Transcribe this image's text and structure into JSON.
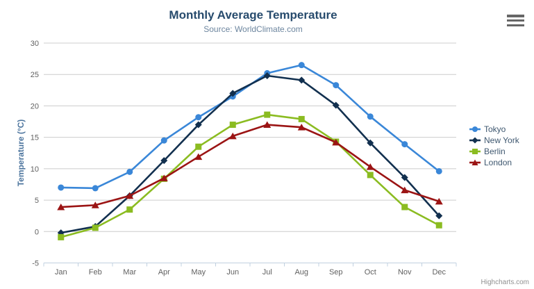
{
  "chart_data": {
    "type": "line",
    "title": "Monthly Average Temperature",
    "subtitle": "Source: WorldClimate.com",
    "xlabel": "",
    "ylabel": "Temperature (°C)",
    "categories": [
      "Jan",
      "Feb",
      "Mar",
      "Apr",
      "May",
      "Jun",
      "Jul",
      "Aug",
      "Sep",
      "Oct",
      "Nov",
      "Dec"
    ],
    "yticks": [
      -5,
      0,
      5,
      10,
      15,
      20,
      25,
      30
    ],
    "ylim": [
      -5,
      30
    ],
    "grid": true,
    "legend_position": "right",
    "series": [
      {
        "name": "Tokyo",
        "color": "#3a87d8",
        "marker": "circle",
        "values": [
          7.0,
          6.9,
          9.5,
          14.5,
          18.2,
          21.5,
          25.2,
          26.5,
          23.3,
          18.3,
          13.9,
          9.6
        ]
      },
      {
        "name": "New York",
        "color": "#12304f",
        "marker": "diamond",
        "values": [
          -0.2,
          0.8,
          5.7,
          11.3,
          17.0,
          22.0,
          24.8,
          24.1,
          20.1,
          14.1,
          8.6,
          2.5
        ]
      },
      {
        "name": "Berlin",
        "color": "#8bbc21",
        "marker": "square",
        "values": [
          -0.9,
          0.6,
          3.5,
          8.4,
          13.5,
          17.0,
          18.6,
          17.9,
          14.3,
          9.0,
          3.9,
          1.0
        ]
      },
      {
        "name": "London",
        "color": "#9b1414",
        "marker": "triangle",
        "values": [
          3.9,
          4.2,
          5.7,
          8.5,
          11.9,
          15.2,
          17.0,
          16.6,
          14.2,
          10.3,
          6.6,
          4.8
        ]
      }
    ],
    "credits": "Highcharts.com"
  },
  "colors": {
    "title": "#274b6d",
    "subtitle": "#6d869f",
    "y_axis_title": "#4d759e",
    "axis_labels": "#606060",
    "grid_line": "#cccccc",
    "axis_line": "#c0d0e0",
    "legend_text": "#3e576f",
    "credits": "#909090",
    "menu_icon": "#666666",
    "background": "#ffffff"
  },
  "menu": {
    "tooltip": "Chart context menu"
  }
}
